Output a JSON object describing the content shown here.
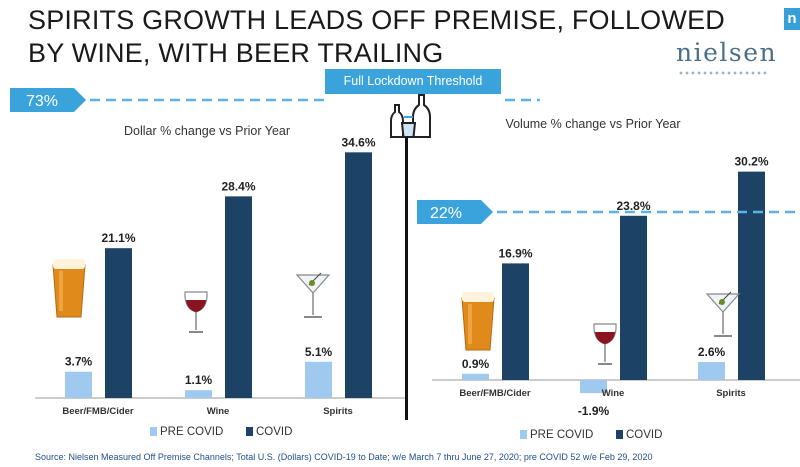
{
  "header": {
    "title_line1": "SPIRITS GROWTH LEADS OFF PREMISE, FOLLOWED",
    "title_line2": "BY WINE, WITH BEER TRAILING",
    "logo": "nielsen",
    "corner_tab": "n"
  },
  "threshold_label": "Full Lockdown Threshold",
  "footer": {
    "source": "Source: Nielsen Measured Off Premise Channels; Total U.S. (Dollars) COVID-19 to Date; w/e March 7 thru June 27, 2020; pre COVID 52 w/e Feb 29, 2020"
  },
  "colors": {
    "pre_covid": "#9fc9ee",
    "covid": "#1c4366",
    "accent": "#3aa3dc",
    "threshold_line": "#59b4e4"
  },
  "icons": [
    "beer-glass-icon",
    "wine-glass-icon",
    "martini-glass-icon",
    "liquor-bottles-icon"
  ],
  "chart_data": [
    {
      "type": "bar",
      "title": "Dollar % change vs Prior Year",
      "categories": [
        "Beer/FMB/Cider",
        "Wine",
        "Spirits"
      ],
      "series": [
        {
          "name": "PRE COVID",
          "values": [
            3.7,
            1.1,
            5.1
          ],
          "labels": [
            "3.7%",
            "1.1%",
            "5.1%"
          ]
        },
        {
          "name": "COVID",
          "values": [
            21.1,
            28.4,
            34.6
          ],
          "labels": [
            "21.1%",
            "28.4%",
            "34.6%"
          ]
        }
      ],
      "threshold": {
        "value": 73,
        "label": "73%"
      },
      "legend": "bottom",
      "grid": false
    },
    {
      "type": "bar",
      "title": "Volume % change vs Prior Year",
      "categories": [
        "Beer/FMB/Cider",
        "Wine",
        "Spirits"
      ],
      "series": [
        {
          "name": "PRE COVID",
          "values": [
            0.9,
            -1.9,
            2.6
          ],
          "labels": [
            "0.9%",
            "-1.9%",
            "2.6%"
          ]
        },
        {
          "name": "COVID",
          "values": [
            16.9,
            23.8,
            30.2
          ],
          "labels": [
            "16.9%",
            "23.8%",
            "30.2%"
          ]
        }
      ],
      "threshold": {
        "value": 22,
        "label": "22%"
      },
      "legend": "bottom",
      "grid": false
    }
  ]
}
